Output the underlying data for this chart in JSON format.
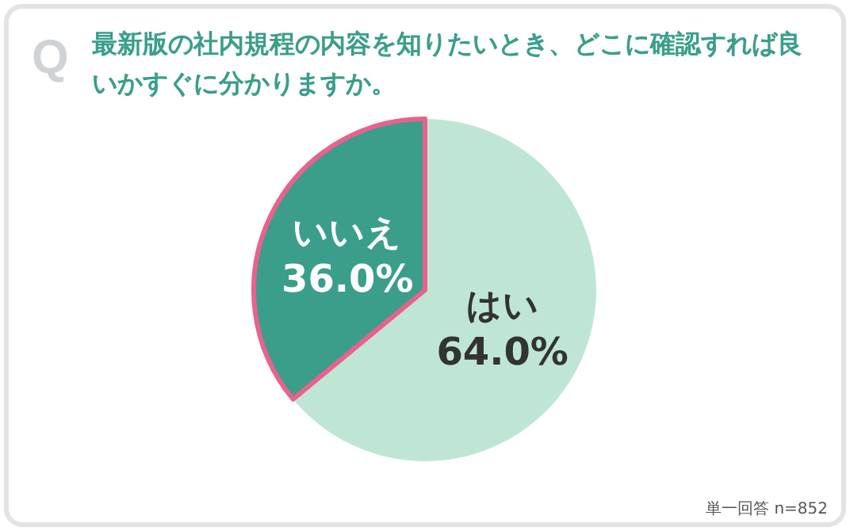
{
  "chart_data": {
    "type": "pie",
    "title": "最新版の社内規程の内容を知りたいとき、どこに確認すれば良いかすぐに分かりますか。",
    "categories": [
      "はい",
      "いいえ"
    ],
    "values": [
      64.0,
      36.0
    ],
    "colors": [
      "#bfe6d5",
      "#3a9e8b"
    ],
    "value_labels": [
      "64.0%",
      "36.0%"
    ],
    "annotations": [
      "Q",
      "単一回答 n=852"
    ]
  }
}
